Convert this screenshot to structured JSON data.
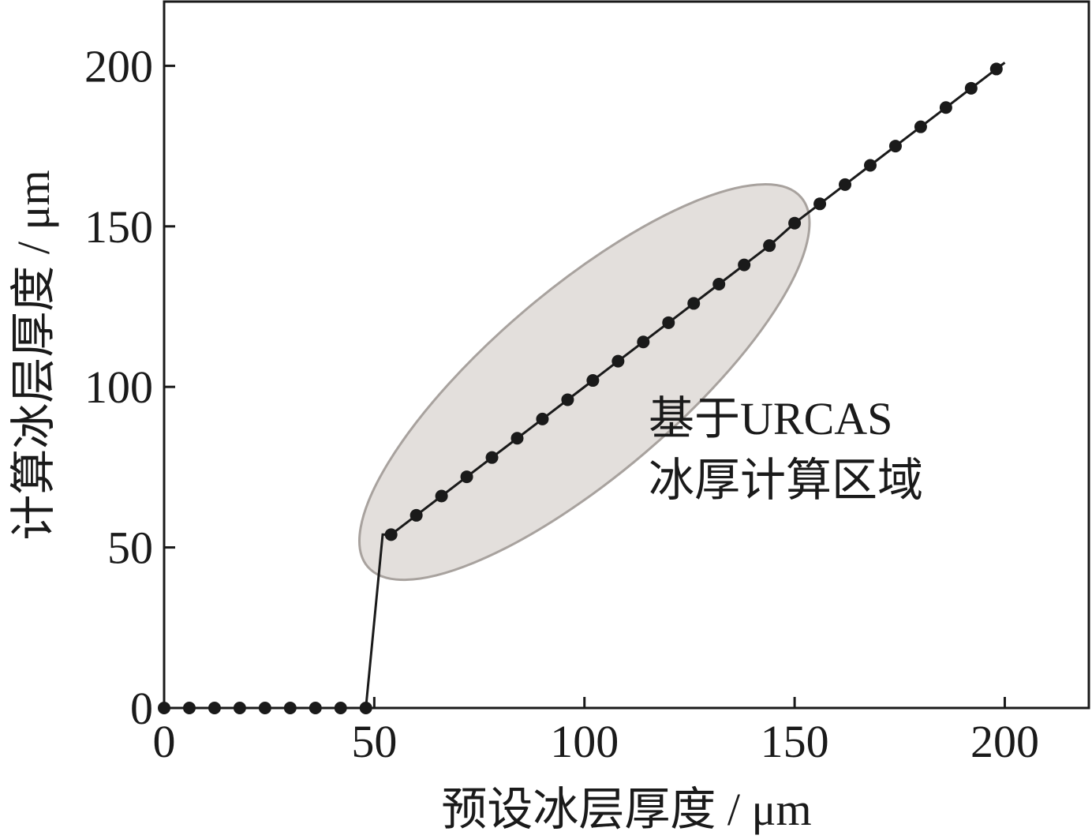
{
  "chart_data": {
    "type": "line",
    "title": "",
    "xlabel": "预设冰层厚度 / μm",
    "ylabel": "计算冰层厚度 / μm",
    "xlim": [
      0,
      220
    ],
    "ylim": [
      0,
      220
    ],
    "x_ticks": [
      0,
      50,
      100,
      150,
      200
    ],
    "y_ticks": [
      0,
      50,
      100,
      150,
      200
    ],
    "grid": false,
    "legend": "none",
    "series": [
      {
        "x": [
          0,
          6,
          12,
          18,
          24,
          30,
          36,
          42,
          48,
          52,
          54,
          60,
          66,
          72,
          78,
          84,
          90,
          96,
          102,
          108,
          114,
          120,
          126,
          132,
          138,
          144,
          150,
          156,
          162,
          168,
          174,
          180,
          186,
          192,
          198,
          200
        ],
        "y": [
          0,
          0,
          0,
          0,
          0,
          0,
          0,
          0,
          0,
          54,
          54,
          60,
          66,
          72,
          78,
          84,
          90,
          96,
          102,
          108,
          114,
          120,
          126,
          132,
          138,
          144,
          151,
          157,
          163,
          169,
          175,
          181,
          187,
          193,
          199,
          201
        ],
        "markers": [
          true,
          true,
          true,
          true,
          true,
          true,
          true,
          true,
          true,
          false,
          true,
          true,
          true,
          true,
          true,
          true,
          true,
          true,
          true,
          true,
          true,
          true,
          true,
          true,
          true,
          true,
          true,
          true,
          true,
          true,
          true,
          true,
          true,
          true,
          true,
          false
        ]
      }
    ],
    "annotation": {
      "lines": [
        "基于URCAS",
        "冰厚计算区域"
      ],
      "region": {
        "x_range": [
          52,
          148
        ],
        "y_range": [
          48,
          155
        ]
      }
    },
    "colors": {
      "line": "#1a1a1a",
      "marker": "#1a1a1a",
      "region_fill": "#e3dfdc",
      "region_stroke": "#a8a29e"
    }
  }
}
